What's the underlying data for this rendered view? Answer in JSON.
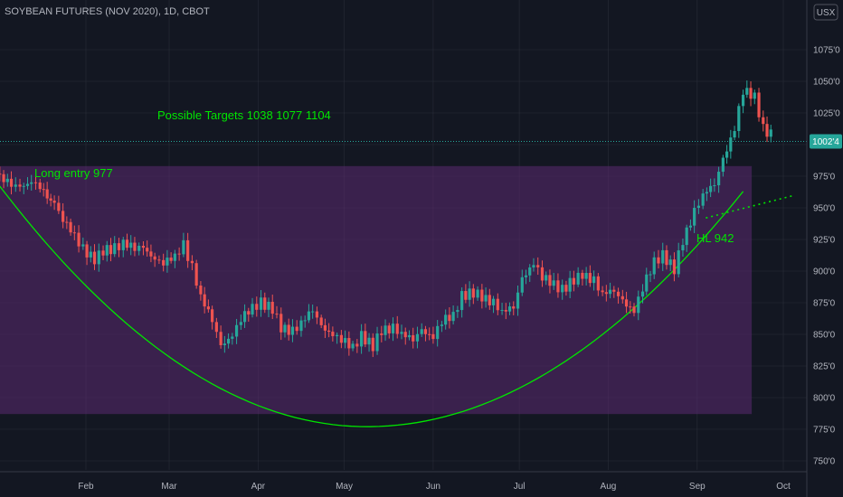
{
  "chart_data": {
    "type": "candlestick",
    "title": "SOYBEAN FUTURES (NOV 2020), 1D, CBOT",
    "currency_badge": "USX",
    "current_price_label": "1002'4",
    "y_ticks": [
      "1075'0",
      "1050'0",
      "1025'0",
      "1000'0",
      "975'0",
      "950'0",
      "925'0",
      "900'0",
      "875'0",
      "850'0",
      "825'0",
      "800'0",
      "775'0",
      "750'0"
    ],
    "y_tick_values": [
      1075,
      1050,
      1025,
      1000,
      975,
      950,
      925,
      900,
      875,
      850,
      825,
      800,
      775,
      750
    ],
    "ylim": [
      745,
      1095
    ],
    "x_ticks": [
      "Feb",
      "Mar",
      "Apr",
      "May",
      "Jun",
      "Jul",
      "Aug",
      "Sep",
      "Oct"
    ],
    "x_tick_dates": [
      "2020-02-01",
      "2020-03-01",
      "2020-04-01",
      "2020-05-01",
      "2020-06-01",
      "2020-07-01",
      "2020-08-01",
      "2020-09-01",
      "2020-10-01"
    ],
    "xlim": [
      "2020-01-01",
      "2020-10-15"
    ],
    "price_series": [
      [
        "2020-01-02",
        977
      ],
      [
        "2020-01-06",
        972
      ],
      [
        "2020-01-09",
        968
      ],
      [
        "2020-01-13",
        973
      ],
      [
        "2020-01-16",
        968
      ],
      [
        "2020-01-21",
        955
      ],
      [
        "2020-01-24",
        944
      ],
      [
        "2020-01-28",
        931
      ],
      [
        "2020-01-31",
        920
      ],
      [
        "2020-02-04",
        912
      ],
      [
        "2020-02-07",
        918
      ],
      [
        "2020-02-11",
        921
      ],
      [
        "2020-02-14",
        923
      ],
      [
        "2020-02-18",
        921
      ],
      [
        "2020-02-21",
        918
      ],
      [
        "2020-02-25",
        910
      ],
      [
        "2020-02-28",
        905
      ],
      [
        "2020-03-03",
        912
      ],
      [
        "2020-03-06",
        918
      ],
      [
        "2020-03-09",
        900
      ],
      [
        "2020-03-12",
        880
      ],
      [
        "2020-03-16",
        860
      ],
      [
        "2020-03-19",
        842
      ],
      [
        "2020-03-23",
        848
      ],
      [
        "2020-03-26",
        865
      ],
      [
        "2020-03-30",
        872
      ],
      [
        "2020-04-02",
        878
      ],
      [
        "2020-04-06",
        872
      ],
      [
        "2020-04-09",
        858
      ],
      [
        "2020-04-13",
        855
      ],
      [
        "2020-04-16",
        862
      ],
      [
        "2020-04-20",
        873
      ],
      [
        "2020-04-23",
        858
      ],
      [
        "2020-04-27",
        852
      ],
      [
        "2020-04-30",
        847
      ],
      [
        "2020-05-04",
        842
      ],
      [
        "2020-05-07",
        848
      ],
      [
        "2020-05-11",
        842
      ],
      [
        "2020-05-14",
        851
      ],
      [
        "2020-05-18",
        855
      ],
      [
        "2020-05-21",
        848
      ],
      [
        "2020-05-25",
        845
      ],
      [
        "2020-05-28",
        850
      ],
      [
        "2020-06-01",
        845
      ],
      [
        "2020-06-04",
        858
      ],
      [
        "2020-06-08",
        862
      ],
      [
        "2020-06-11",
        878
      ],
      [
        "2020-06-15",
        880
      ],
      [
        "2020-06-18",
        878
      ],
      [
        "2020-06-22",
        872
      ],
      [
        "2020-06-25",
        868
      ],
      [
        "2020-06-29",
        870
      ],
      [
        "2020-07-02",
        895
      ],
      [
        "2020-07-06",
        905
      ],
      [
        "2020-07-09",
        898
      ],
      [
        "2020-07-13",
        890
      ],
      [
        "2020-07-16",
        888
      ],
      [
        "2020-07-20",
        895
      ],
      [
        "2020-07-23",
        900
      ],
      [
        "2020-07-27",
        895
      ],
      [
        "2020-07-30",
        885
      ],
      [
        "2020-08-03",
        888
      ],
      [
        "2020-08-06",
        878
      ],
      [
        "2020-08-10",
        871
      ],
      [
        "2020-08-13",
        888
      ],
      [
        "2020-08-17",
        910
      ],
      [
        "2020-08-20",
        912
      ],
      [
        "2020-08-24",
        903
      ],
      [
        "2020-08-27",
        922
      ],
      [
        "2020-08-31",
        947
      ],
      [
        "2020-09-03",
        958
      ],
      [
        "2020-09-07",
        968
      ],
      [
        "2020-09-10",
        985
      ],
      [
        "2020-09-14",
        1010
      ],
      [
        "2020-09-17",
        1040
      ],
      [
        "2020-09-21",
        1035
      ],
      [
        "2020-09-24",
        1010
      ],
      [
        "2020-09-28",
        1002.5
      ]
    ],
    "annotations": {
      "targets_label": "Possible Targets  1038  1077    1104",
      "long_entry_label": "Long entry 977",
      "hl_label": "HL 942"
    },
    "long_entry_level": 977,
    "hl_level": 942,
    "colors": {
      "background": "#131722",
      "up_candle": "#26a69a",
      "down_candle": "#ef5350",
      "curve": "#00e600",
      "zone_fill": "#5b2a71",
      "grid": "#363a45",
      "text": "#b2b5be"
    }
  }
}
